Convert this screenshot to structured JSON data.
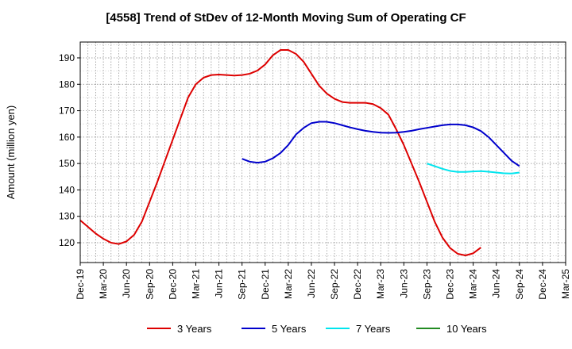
{
  "chart_data": {
    "type": "line",
    "title": "[4558]  Trend of StDev of 12-Month Moving Sum of Operating CF",
    "xlabel": "",
    "ylabel": "Amount (million yen)",
    "ylim": [
      112.5,
      196
    ],
    "yticks": [
      120,
      130,
      140,
      150,
      160,
      170,
      180,
      190
    ],
    "x_categories": [
      "Dec-19",
      "Mar-20",
      "Jun-20",
      "Sep-20",
      "Dec-20",
      "Mar-21",
      "Jun-21",
      "Sep-21",
      "Dec-21",
      "Mar-22",
      "Jun-22",
      "Sep-22",
      "Dec-22",
      "Mar-23",
      "Jun-23",
      "Sep-23",
      "Dec-23",
      "Mar-24",
      "Jun-24",
      "Sep-24",
      "Dec-24",
      "Mar-25"
    ],
    "grid": true,
    "legend_position": "bottom",
    "series": [
      {
        "name": "3 Years",
        "color": "#dd0000",
        "points": [
          [
            0,
            128.5
          ],
          [
            1,
            126
          ],
          [
            2,
            123.5
          ],
          [
            3,
            121.5
          ],
          [
            4,
            120
          ],
          [
            5,
            119.5
          ],
          [
            6,
            120.5
          ],
          [
            7,
            123
          ],
          [
            8,
            128
          ],
          [
            9,
            135.5
          ],
          [
            10,
            143
          ],
          [
            11,
            151
          ],
          [
            12,
            159
          ],
          [
            13,
            167
          ],
          [
            14,
            175
          ],
          [
            15,
            180
          ],
          [
            16,
            182.5
          ],
          [
            17,
            183.5
          ],
          [
            18,
            183.7
          ],
          [
            19,
            183.5
          ],
          [
            20,
            183.3
          ],
          [
            21,
            183.5
          ],
          [
            22,
            184
          ],
          [
            23,
            185.2
          ],
          [
            24,
            187.5
          ],
          [
            25,
            191
          ],
          [
            26,
            193
          ],
          [
            27,
            193
          ],
          [
            28,
            191.5
          ],
          [
            29,
            188.5
          ],
          [
            30,
            184
          ],
          [
            31,
            179.5
          ],
          [
            32,
            176.5
          ],
          [
            33,
            174.5
          ],
          [
            34,
            173.3
          ],
          [
            35,
            173
          ],
          [
            36,
            173
          ],
          [
            37,
            173
          ],
          [
            38,
            172.5
          ],
          [
            39,
            171
          ],
          [
            40,
            168.5
          ],
          [
            41,
            163
          ],
          [
            42,
            157
          ],
          [
            43,
            150
          ],
          [
            44,
            143
          ],
          [
            45,
            135.5
          ],
          [
            46,
            128
          ],
          [
            47,
            122
          ],
          [
            48,
            118
          ],
          [
            49,
            115.8
          ],
          [
            50,
            115.2
          ],
          [
            51,
            116
          ],
          [
            52,
            118.2
          ]
        ]
      },
      {
        "name": "5 Years",
        "color": "#0000cc",
        "points": [
          [
            21,
            151.8
          ],
          [
            22,
            150.7
          ],
          [
            23,
            150.3
          ],
          [
            24,
            150.7
          ],
          [
            25,
            152
          ],
          [
            26,
            154
          ],
          [
            27,
            157
          ],
          [
            28,
            161
          ],
          [
            29,
            163.5
          ],
          [
            30,
            165.3
          ],
          [
            31,
            165.8
          ],
          [
            32,
            165.8
          ],
          [
            33,
            165.3
          ],
          [
            34,
            164.5
          ],
          [
            35,
            163.7
          ],
          [
            36,
            163
          ],
          [
            37,
            162.4
          ],
          [
            38,
            162
          ],
          [
            39,
            161.7
          ],
          [
            40,
            161.6
          ],
          [
            41,
            161.7
          ],
          [
            42,
            162
          ],
          [
            43,
            162.4
          ],
          [
            44,
            163
          ],
          [
            45,
            163.5
          ],
          [
            46,
            164
          ],
          [
            47,
            164.5
          ],
          [
            48,
            164.8
          ],
          [
            49,
            164.8
          ],
          [
            50,
            164.5
          ],
          [
            51,
            163.7
          ],
          [
            52,
            162.3
          ],
          [
            53,
            160
          ],
          [
            54,
            157
          ],
          [
            55,
            154
          ],
          [
            56,
            151
          ],
          [
            57,
            149
          ]
        ]
      },
      {
        "name": "7 Years",
        "color": "#00e5ee",
        "points": [
          [
            45,
            150
          ],
          [
            46,
            149
          ],
          [
            47,
            148
          ],
          [
            48,
            147.2
          ],
          [
            49,
            146.8
          ],
          [
            50,
            146.8
          ],
          [
            51,
            147
          ],
          [
            52,
            147.1
          ],
          [
            53,
            146.9
          ],
          [
            54,
            146.6
          ],
          [
            55,
            146.3
          ],
          [
            56,
            146.2
          ],
          [
            57,
            146.6
          ]
        ]
      },
      {
        "name": "10 Years",
        "color": "#228b22",
        "points": []
      }
    ]
  }
}
